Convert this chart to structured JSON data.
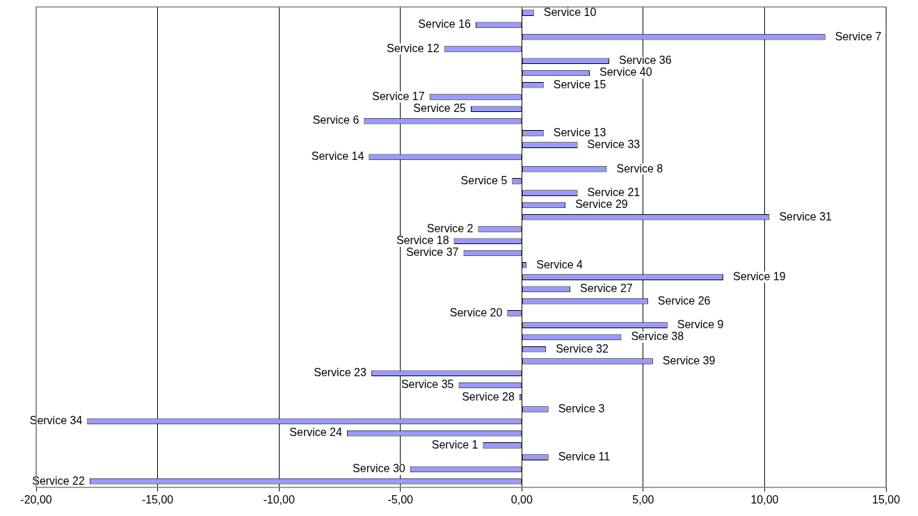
{
  "chart_data": {
    "type": "bar",
    "orientation": "horizontal",
    "categories": [
      "Service 10",
      "Service 16",
      "Service 7",
      "Service 12",
      "Service 36",
      "Service 40",
      "Service 15",
      "Service 17",
      "Service 25",
      "Service 6",
      "Service 13",
      "Service 33",
      "Service 14",
      "Service 8",
      "Service 5",
      "Service 21",
      "Service 29",
      "Service 31",
      "Service 2",
      "Service 18",
      "Service 37",
      "Service 4",
      "Service 19",
      "Service 27",
      "Service 26",
      "Service 20",
      "Service 9",
      "Service 38",
      "Service 32",
      "Service 39",
      "Service 23",
      "Service 35",
      "Service 28",
      "Service 3",
      "Service 34",
      "Service 24",
      "Service 1",
      "Service 11",
      "Service 30",
      "Service 22"
    ],
    "values": [
      0.5,
      -1.9,
      12.5,
      -3.2,
      3.6,
      2.8,
      0.9,
      -3.8,
      -2.1,
      -6.5,
      0.9,
      2.3,
      -6.3,
      3.5,
      -0.4,
      2.3,
      1.8,
      10.2,
      -1.8,
      -2.8,
      -2.4,
      0.2,
      8.3,
      2.0,
      5.2,
      -0.6,
      6.0,
      4.1,
      1.0,
      5.4,
      -6.2,
      -2.6,
      -0.1,
      1.1,
      -17.9,
      -7.2,
      -1.6,
      1.1,
      -4.6,
      -17.8
    ],
    "color": "#9999ff",
    "xlim": [
      -20,
      15
    ],
    "xticks": [
      {
        "value": -20,
        "label": "-20,00"
      },
      {
        "value": -15,
        "label": "-15,00"
      },
      {
        "value": -10,
        "label": "-10,00"
      },
      {
        "value": -5,
        "label": "-5,00"
      },
      {
        "value": 0,
        "label": "0,00"
      },
      {
        "value": 5,
        "label": "5,00"
      },
      {
        "value": 10,
        "label": "10,00"
      },
      {
        "value": 15,
        "label": "15,00"
      }
    ],
    "grid": "x",
    "legend": false,
    "tick_labels": "x"
  }
}
